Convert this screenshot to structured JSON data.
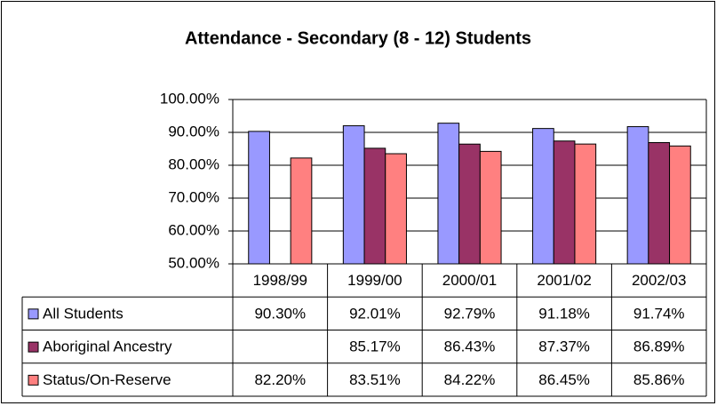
{
  "chart_data": {
    "type": "bar",
    "title": "Attendance - Secondary (8 - 12) Students",
    "categories": [
      "1998/99",
      "1999/00",
      "2000/01",
      "2001/02",
      "2002/03"
    ],
    "series": [
      {
        "name": "All Students",
        "color": "#9999ff",
        "values": [
          90.3,
          92.01,
          92.79,
          91.18,
          91.74
        ],
        "value_labels": [
          "90.30%",
          "92.01%",
          "92.79%",
          "91.18%",
          "91.74%"
        ]
      },
      {
        "name": "Aboriginal Ancestry",
        "color": "#993366",
        "values": [
          null,
          85.17,
          86.43,
          87.37,
          86.89
        ],
        "value_labels": [
          null,
          "85.17%",
          "86.43%",
          "87.37%",
          "86.89%"
        ]
      },
      {
        "name": "Status/On-Reserve",
        "color": "#ff8080",
        "values": [
          82.2,
          83.51,
          84.22,
          86.45,
          85.86
        ],
        "value_labels": [
          "82.20%",
          "83.51%",
          "84.22%",
          "86.45%",
          "85.86%"
        ]
      }
    ],
    "ylim": [
      50,
      100
    ],
    "yticks": [
      {
        "value": 50,
        "label": "50.00%"
      },
      {
        "value": 60,
        "label": "60.00%"
      },
      {
        "value": 70,
        "label": "70.00%"
      },
      {
        "value": 80,
        "label": "80.00%"
      },
      {
        "value": 90,
        "label": "90.00%"
      },
      {
        "value": 100,
        "label": "100.00%"
      }
    ],
    "grid": true
  }
}
